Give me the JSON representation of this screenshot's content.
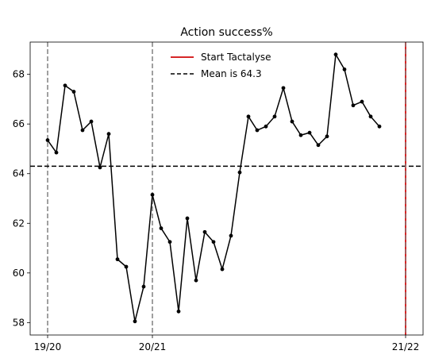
{
  "chart_data": {
    "type": "line",
    "title": "Action success%",
    "xlabel": "",
    "ylabel": "",
    "x_tick_labels": [
      {
        "label": "19/20",
        "x": 0
      },
      {
        "label": "20/21",
        "x": 12
      },
      {
        "label": "21/22",
        "x": 41
      }
    ],
    "xlim": [
      -2,
      43
    ],
    "ylim": [
      57.5,
      69.3
    ],
    "yticks": [
      58,
      60,
      62,
      64,
      66,
      68
    ],
    "series": [
      {
        "name": "",
        "color": "#000000",
        "x": [
          0,
          1,
          2,
          3,
          4,
          5,
          6,
          7,
          8,
          9,
          10,
          11,
          12,
          13,
          14,
          15,
          16,
          17,
          18,
          19,
          20,
          21,
          22,
          23,
          24,
          25,
          26,
          27,
          28,
          29,
          30,
          31,
          32,
          33,
          34,
          35,
          36,
          37,
          38
        ],
        "values": [
          65.35,
          64.85,
          67.55,
          67.3,
          65.75,
          66.1,
          64.25,
          65.6,
          60.55,
          60.25,
          58.05,
          59.45,
          63.15,
          61.8,
          61.25,
          58.45,
          62.2,
          59.7,
          61.65,
          61.25,
          60.15,
          61.5,
          64.05,
          66.3,
          65.75,
          65.9,
          66.3,
          67.45,
          66.1,
          65.55,
          65.65,
          65.15,
          65.5,
          68.8,
          68.2,
          66.75,
          66.9,
          66.3,
          65.9
        ]
      }
    ],
    "mean_line": {
      "label": "Mean is 64.3",
      "value": 64.3,
      "color": "#000000",
      "style": "dashed"
    },
    "start_line": {
      "label": "Start Tactalyse",
      "x": 41,
      "color": "#d62728"
    },
    "season_lines": {
      "x": [
        0,
        12
      ],
      "color": "#808080",
      "style": "dashed"
    },
    "legend": {
      "placement": "top-center"
    },
    "grid": false
  }
}
